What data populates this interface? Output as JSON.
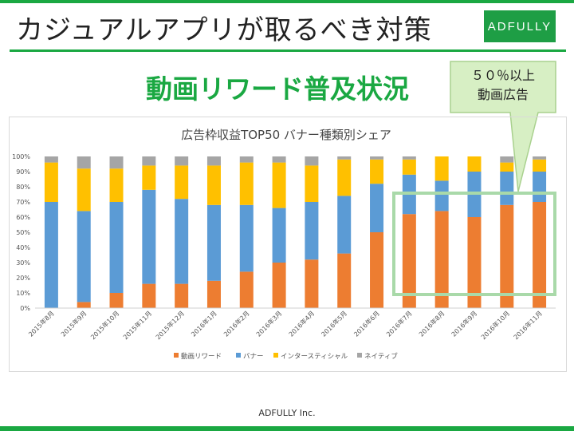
{
  "slide": {
    "title": "カジュアルアプリが取るべき対策",
    "logo": "ADFULLY",
    "subtitle": "動画リワード普及状況",
    "callout_line1": "５０％以上",
    "callout_line2": "動画広告",
    "footer": "ADFULLY Inc."
  },
  "colors": {
    "accent": "#1aa842",
    "logo_bg": "#1e9e45",
    "callout_fill": "#d7efc4",
    "callout_stroke": "#a9d18e",
    "highlight_box": "#a9d9a9"
  },
  "chart_data": {
    "type": "bar",
    "stacked": true,
    "title": "広告枠収益TOP50 バナー種類別シェア",
    "categories": [
      "2015年8月",
      "2015年9月",
      "2015年10月",
      "2015年11月",
      "2015年12月",
      "2016年1月",
      "2016年2月",
      "2016年3月",
      "2016年4月",
      "2016年5月",
      "2016年6月",
      "2016年7月",
      "2016年8月",
      "2016年9月",
      "2016年10月",
      "2016年11月"
    ],
    "series": [
      {
        "name": "動画リワード",
        "color": "#ed7d31",
        "values": [
          0,
          4,
          10,
          16,
          16,
          18,
          24,
          30,
          32,
          36,
          50,
          62,
          64,
          60,
          68,
          70
        ]
      },
      {
        "name": "バナー",
        "color": "#5b9bd5",
        "values": [
          70,
          60,
          60,
          62,
          56,
          50,
          44,
          36,
          38,
          38,
          32,
          26,
          20,
          30,
          22,
          20
        ]
      },
      {
        "name": "インタースティシャル",
        "color": "#ffc000",
        "values": [
          26,
          28,
          22,
          16,
          22,
          26,
          28,
          30,
          24,
          24,
          16,
          10,
          16,
          10,
          6,
          8
        ]
      },
      {
        "name": "ネイティブ",
        "color": "#a5a5a5",
        "values": [
          4,
          8,
          8,
          6,
          6,
          6,
          4,
          4,
          6,
          2,
          2,
          2,
          0,
          0,
          4,
          2
        ]
      }
    ],
    "yticks": [
      "0%",
      "10%",
      "20%",
      "30%",
      "40%",
      "50%",
      "60%",
      "70%",
      "80%",
      "90%",
      "100%"
    ],
    "ylim": [
      0,
      100
    ],
    "grid": false,
    "legend": "bottom"
  }
}
